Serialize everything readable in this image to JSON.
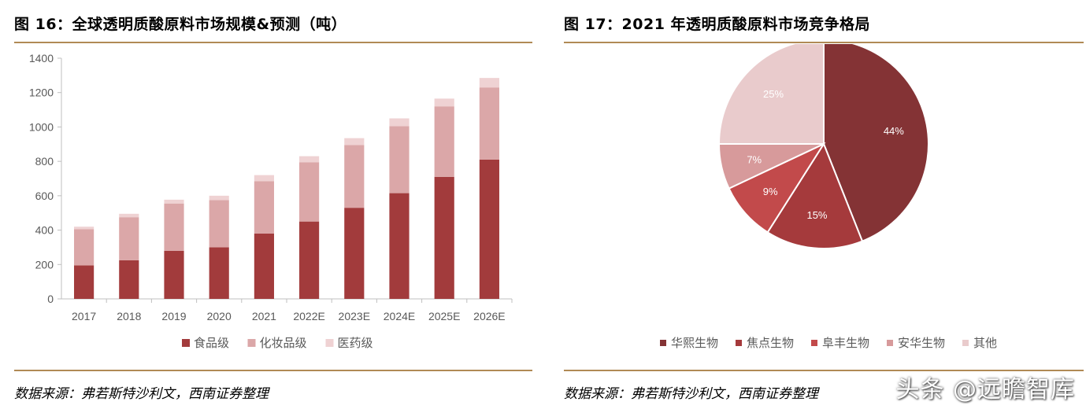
{
  "left": {
    "title": "图 16：全球透明质酸原料市场规模&预测（吨）",
    "source": "数据来源：弗若斯特沙利文，西南证券整理"
  },
  "right": {
    "title": "图 17：2021 年透明质酸原料市场竞争格局",
    "source": "数据来源：弗若斯特沙利文，西南证券整理"
  },
  "watermark": "头条 @远瞻智库",
  "chart_data": [
    {
      "type": "bar",
      "stacked": true,
      "title": "",
      "xlabel": "",
      "ylabel": "",
      "categories": [
        "2017",
        "2018",
        "2019",
        "2020",
        "2021",
        "2022E",
        "2023E",
        "2024E",
        "2025E",
        "2026E"
      ],
      "series": [
        {
          "name": "食品级",
          "color": "#a23b3c",
          "values": [
            195,
            225,
            280,
            300,
            380,
            450,
            530,
            615,
            710,
            810
          ]
        },
        {
          "name": "化妆品级",
          "color": "#dba7a8",
          "values": [
            210,
            250,
            275,
            275,
            305,
            345,
            365,
            390,
            410,
            420
          ]
        },
        {
          "name": "医药级",
          "color": "#efd2d3",
          "values": [
            15,
            20,
            22,
            25,
            35,
            35,
            40,
            45,
            45,
            55
          ]
        }
      ],
      "ylim": [
        0,
        1400
      ],
      "yticks": [
        0,
        200,
        400,
        600,
        800,
        1000,
        1200,
        1400
      ],
      "grid": false,
      "legend": "bottom"
    },
    {
      "type": "pie",
      "title": "",
      "labels": [
        "华熙生物",
        "焦点生物",
        "阜丰生物",
        "安华生物",
        "其他"
      ],
      "values": [
        44,
        15,
        9,
        7,
        25
      ],
      "value_labels": [
        "44%",
        "15%",
        "9%",
        "7%",
        "25%"
      ],
      "colors": [
        "#843335",
        "#a53a3c",
        "#c24a4b",
        "#d79a9b",
        "#e9cbcc"
      ],
      "legend": "bottom"
    }
  ]
}
